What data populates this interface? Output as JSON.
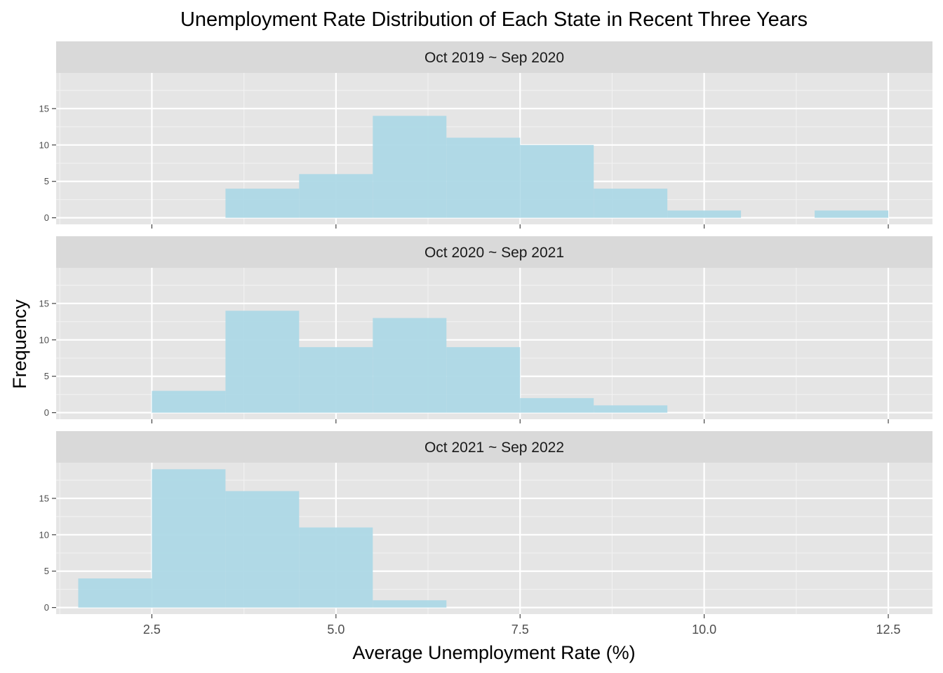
{
  "chart_data": {
    "type": "bar",
    "title": "Unemployment Rate Distribution of Each State in Recent Three Years",
    "xlabel": "Average Unemployment Rate (%)",
    "ylabel": "Frequency",
    "bin_width": 1,
    "xlim": [
      1.2,
      13.1
    ],
    "ylim": [
      -0.9,
      19.9
    ],
    "x_ticks": [
      2.5,
      5.0,
      7.5,
      10.0,
      12.5
    ],
    "x_tick_labels": [
      "2.5",
      "5.0",
      "7.5",
      "10.0",
      "12.5"
    ],
    "y_ticks": [
      0,
      5,
      10,
      15
    ],
    "y_tick_labels": [
      "0",
      "5",
      "10",
      "15"
    ],
    "grid": true,
    "bar_color": "#ADD8E6",
    "panel_background": "#E5E5E5",
    "strip_background": "#D9D9D9",
    "panels": [
      {
        "label": "Oct 2019 ~ Sep 2020",
        "bins": [
          {
            "x0": 3.5,
            "x1": 4.5,
            "count": 4
          },
          {
            "x0": 4.5,
            "x1": 5.5,
            "count": 6
          },
          {
            "x0": 5.5,
            "x1": 6.5,
            "count": 14
          },
          {
            "x0": 6.5,
            "x1": 7.5,
            "count": 11
          },
          {
            "x0": 7.5,
            "x1": 8.5,
            "count": 10
          },
          {
            "x0": 8.5,
            "x1": 9.5,
            "count": 4
          },
          {
            "x0": 9.5,
            "x1": 10.5,
            "count": 1
          },
          {
            "x0": 11.5,
            "x1": 12.5,
            "count": 1
          }
        ]
      },
      {
        "label": "Oct 2020 ~ Sep 2021",
        "bins": [
          {
            "x0": 2.5,
            "x1": 3.5,
            "count": 3
          },
          {
            "x0": 3.5,
            "x1": 4.5,
            "count": 14
          },
          {
            "x0": 4.5,
            "x1": 5.5,
            "count": 9
          },
          {
            "x0": 5.5,
            "x1": 6.5,
            "count": 13
          },
          {
            "x0": 6.5,
            "x1": 7.5,
            "count": 9
          },
          {
            "x0": 7.5,
            "x1": 8.5,
            "count": 2
          },
          {
            "x0": 8.5,
            "x1": 9.5,
            "count": 1
          }
        ]
      },
      {
        "label": "Oct 2021 ~ Sep 2022",
        "bins": [
          {
            "x0": 1.5,
            "x1": 2.5,
            "count": 4
          },
          {
            "x0": 2.5,
            "x1": 3.5,
            "count": 19
          },
          {
            "x0": 3.5,
            "x1": 4.5,
            "count": 16
          },
          {
            "x0": 4.5,
            "x1": 5.5,
            "count": 11
          },
          {
            "x0": 5.5,
            "x1": 6.5,
            "count": 1
          }
        ]
      }
    ]
  }
}
